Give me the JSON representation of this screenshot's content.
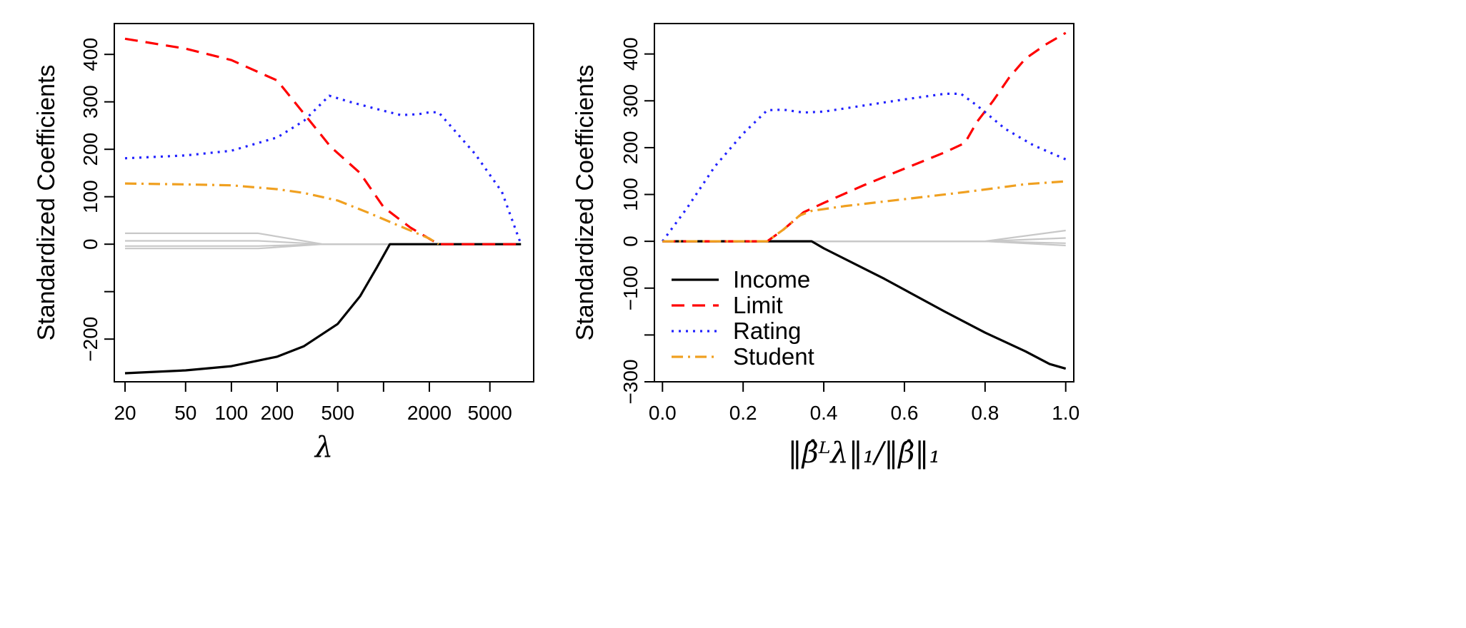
{
  "figure_title": "",
  "series_styles": {
    "Income": {
      "color": "#000000",
      "dash": "solid"
    },
    "Limit": {
      "color": "#ff0000",
      "dash": "dashed"
    },
    "Rating": {
      "color": "#2222ff",
      "dash": "dotted"
    },
    "Student": {
      "color": "#f0a020",
      "dash": "dashdot"
    },
    "Other": {
      "color": "#c8c8c8",
      "dash": "solid"
    }
  },
  "chart_data": [
    {
      "type": "line",
      "title": "",
      "xlabel": "λ",
      "ylabel": "Standardized Coefficients",
      "xscale": "log",
      "xlim": [
        17,
        9700
      ],
      "ylim": [
        -290,
        465
      ],
      "xticks": [
        20,
        50,
        100,
        200,
        500,
        2000,
        5000
      ],
      "xtick_labels": [
        "20",
        "50",
        "100",
        "200",
        "500",
        "2000",
        "5000"
      ],
      "xtick_unlabeled": [
        1000,
        10000
      ],
      "yticks": [
        -200,
        -100,
        0,
        100,
        200,
        300,
        400
      ],
      "ytick_labels": [
        "−200",
        "",
        "0",
        "100",
        "200",
        "300",
        "400"
      ],
      "legend": null,
      "series": [
        {
          "name": "Other",
          "points": [
            [
              20,
              23
            ],
            [
              150,
              23
            ],
            [
              400,
              0
            ],
            [
              8000,
              0
            ]
          ]
        },
        {
          "name": "Other",
          "points": [
            [
              20,
              7
            ],
            [
              150,
              7
            ],
            [
              400,
              0
            ],
            [
              8000,
              0
            ]
          ]
        },
        {
          "name": "Other",
          "points": [
            [
              20,
              -4
            ],
            [
              150,
              -4
            ],
            [
              400,
              0
            ],
            [
              8000,
              0
            ]
          ]
        },
        {
          "name": "Other",
          "points": [
            [
              20,
              -9
            ],
            [
              150,
              -9
            ],
            [
              400,
              0
            ],
            [
              8000,
              0
            ]
          ]
        },
        {
          "name": "Income",
          "points": [
            [
              20,
              -272
            ],
            [
              50,
              -266
            ],
            [
              100,
              -257
            ],
            [
              200,
              -237
            ],
            [
              300,
              -215
            ],
            [
              500,
              -168
            ],
            [
              700,
              -110
            ],
            [
              900,
              -50
            ],
            [
              1100,
              0
            ],
            [
              8000,
              0
            ]
          ]
        },
        {
          "name": "Limit",
          "points": [
            [
              20,
              433
            ],
            [
              50,
              412
            ],
            [
              100,
              388
            ],
            [
              200,
              345
            ],
            [
              300,
              275
            ],
            [
              450,
              205
            ],
            [
              700,
              150
            ],
            [
              1000,
              78
            ],
            [
              1500,
              35
            ],
            [
              2300,
              0
            ],
            [
              8000,
              0
            ]
          ]
        },
        {
          "name": "Rating",
          "points": [
            [
              20,
              181
            ],
            [
              50,
              187
            ],
            [
              100,
              197
            ],
            [
              200,
              225
            ],
            [
              300,
              260
            ],
            [
              440,
              313
            ],
            [
              600,
              300
            ],
            [
              900,
              285
            ],
            [
              1300,
              272
            ],
            [
              1700,
              274
            ],
            [
              2000,
              278
            ],
            [
              2300,
              278
            ],
            [
              4000,
              190
            ],
            [
              6000,
              110
            ],
            [
              8000,
              0
            ]
          ]
        },
        {
          "name": "Student",
          "points": [
            [
              20,
              128
            ],
            [
              50,
              126
            ],
            [
              100,
              124
            ],
            [
              200,
              116
            ],
            [
              300,
              108
            ],
            [
              500,
              92
            ],
            [
              800,
              66
            ],
            [
              1200,
              42
            ],
            [
              2000,
              12
            ],
            [
              2300,
              0
            ]
          ]
        }
      ]
    },
    {
      "type": "line",
      "title": "",
      "xlabel": "‖β̂ᴸλ‖₁/‖β̂‖₁",
      "ylabel": "Standardized Coefficients",
      "xscale": "linear",
      "xlim": [
        -0.02,
        1.02
      ],
      "ylim": [
        -300,
        465
      ],
      "xticks": [
        0.0,
        0.2,
        0.4,
        0.6,
        0.8,
        1.0
      ],
      "xtick_labels": [
        "0.0",
        "0.2",
        "0.4",
        "0.6",
        "0.8",
        "1.0"
      ],
      "yticks": [
        -300,
        -200,
        -100,
        0,
        100,
        200,
        300,
        400
      ],
      "ytick_labels": [
        "−300",
        "",
        "−100",
        "0",
        "100",
        "200",
        "300",
        "400"
      ],
      "legend": {
        "position": "bottom-left",
        "entries": [
          "Income",
          "Limit",
          "Rating",
          "Student"
        ]
      },
      "series": [
        {
          "name": "Other",
          "points": [
            [
              0,
              0
            ],
            [
              0.8,
              0
            ],
            [
              1.0,
              23
            ]
          ]
        },
        {
          "name": "Other",
          "points": [
            [
              0,
              0
            ],
            [
              0.8,
              0
            ],
            [
              1.0,
              7
            ]
          ]
        },
        {
          "name": "Other",
          "points": [
            [
              0,
              0
            ],
            [
              0.8,
              0
            ],
            [
              1.0,
              -4
            ]
          ]
        },
        {
          "name": "Other",
          "points": [
            [
              0,
              0
            ],
            [
              0.8,
              0
            ],
            [
              1.0,
              -9
            ]
          ]
        },
        {
          "name": "Income",
          "points": [
            [
              0,
              0
            ],
            [
              0.37,
              0
            ],
            [
              0.4,
              -15
            ],
            [
              0.55,
              -80
            ],
            [
              0.7,
              -150
            ],
            [
              0.8,
              -195
            ],
            [
              0.9,
              -235
            ],
            [
              0.96,
              -262
            ],
            [
              1.0,
              -272
            ]
          ]
        },
        {
          "name": "Limit",
          "points": [
            [
              0,
              0
            ],
            [
              0.26,
              0
            ],
            [
              0.3,
              25
            ],
            [
              0.35,
              62
            ],
            [
              0.4,
              82
            ],
            [
              0.5,
              120
            ],
            [
              0.6,
              155
            ],
            [
              0.7,
              190
            ],
            [
              0.75,
              210
            ],
            [
              0.78,
              255
            ],
            [
              0.82,
              300
            ],
            [
              0.86,
              350
            ],
            [
              0.9,
              390
            ],
            [
              0.95,
              420
            ],
            [
              1.0,
              445
            ]
          ]
        },
        {
          "name": "Rating",
          "points": [
            [
              0,
              0
            ],
            [
              0.06,
              70
            ],
            [
              0.13,
              160
            ],
            [
              0.2,
              230
            ],
            [
              0.26,
              280
            ],
            [
              0.3,
              281
            ],
            [
              0.35,
              275
            ],
            [
              0.4,
              277
            ],
            [
              0.5,
              290
            ],
            [
              0.6,
              303
            ],
            [
              0.7,
              315
            ],
            [
              0.74,
              315
            ],
            [
              0.78,
              290
            ],
            [
              0.85,
              240
            ],
            [
              0.92,
              205
            ],
            [
              1.0,
              175
            ]
          ]
        },
        {
          "name": "Student",
          "points": [
            [
              0,
              0
            ],
            [
              0.26,
              0
            ],
            [
              0.3,
              25
            ],
            [
              0.34,
              55
            ],
            [
              0.37,
              65
            ],
            [
              0.45,
              75
            ],
            [
              0.6,
              90
            ],
            [
              0.75,
              105
            ],
            [
              0.9,
              122
            ],
            [
              1.0,
              128
            ]
          ]
        }
      ]
    }
  ]
}
